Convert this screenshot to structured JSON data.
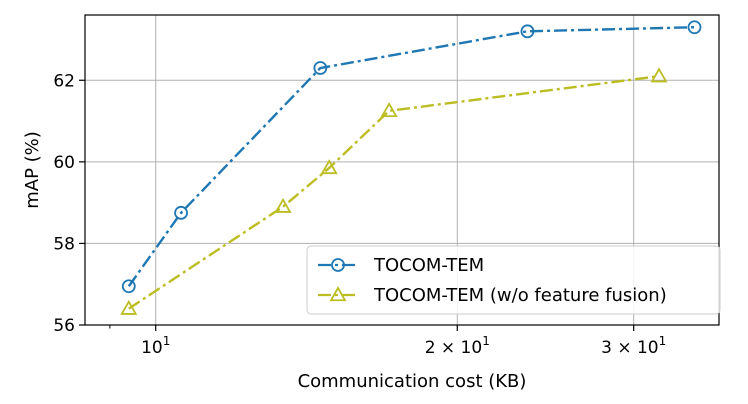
{
  "chart_data": {
    "type": "line",
    "xscale": "log",
    "xlim": [
      8.5,
      36.5
    ],
    "ylim": [
      56,
      63.6
    ],
    "xlabel": "Communication cost (KB)",
    "ylabel": "mAP (%)",
    "yticks": [
      {
        "value": 56,
        "label": "56"
      },
      {
        "value": 58,
        "label": "58"
      },
      {
        "value": 60,
        "label": "60"
      },
      {
        "value": 62,
        "label": "62"
      }
    ],
    "xticks_major": [
      {
        "value": 10,
        "base": "10",
        "exp": "1",
        "coef": ""
      },
      {
        "value": 20,
        "base": "10",
        "exp": "1",
        "coef": "2 × "
      },
      {
        "value": 30,
        "base": "10",
        "exp": "1",
        "coef": "3 × "
      }
    ],
    "xticks_minor": [
      9,
      40
    ],
    "grid": true,
    "legend_position": "lower-right",
    "series": [
      {
        "name": "TOCOM-TEM",
        "color": "#1f77b4",
        "marker": "circle",
        "linestyle": "dash-dot",
        "x": [
          9.4,
          10.6,
          14.6,
          23.5,
          34.5
        ],
        "y": [
          56.95,
          58.75,
          62.3,
          63.2,
          63.3
        ]
      },
      {
        "name": "TOCOM-TEM (w/o feature fusion)",
        "color": "#bcbd22",
        "marker": "triangle",
        "linestyle": "dash-dot",
        "x": [
          9.4,
          13.4,
          14.9,
          17.1,
          31.8
        ],
        "y": [
          56.4,
          58.9,
          59.85,
          61.25,
          62.1
        ]
      }
    ]
  }
}
